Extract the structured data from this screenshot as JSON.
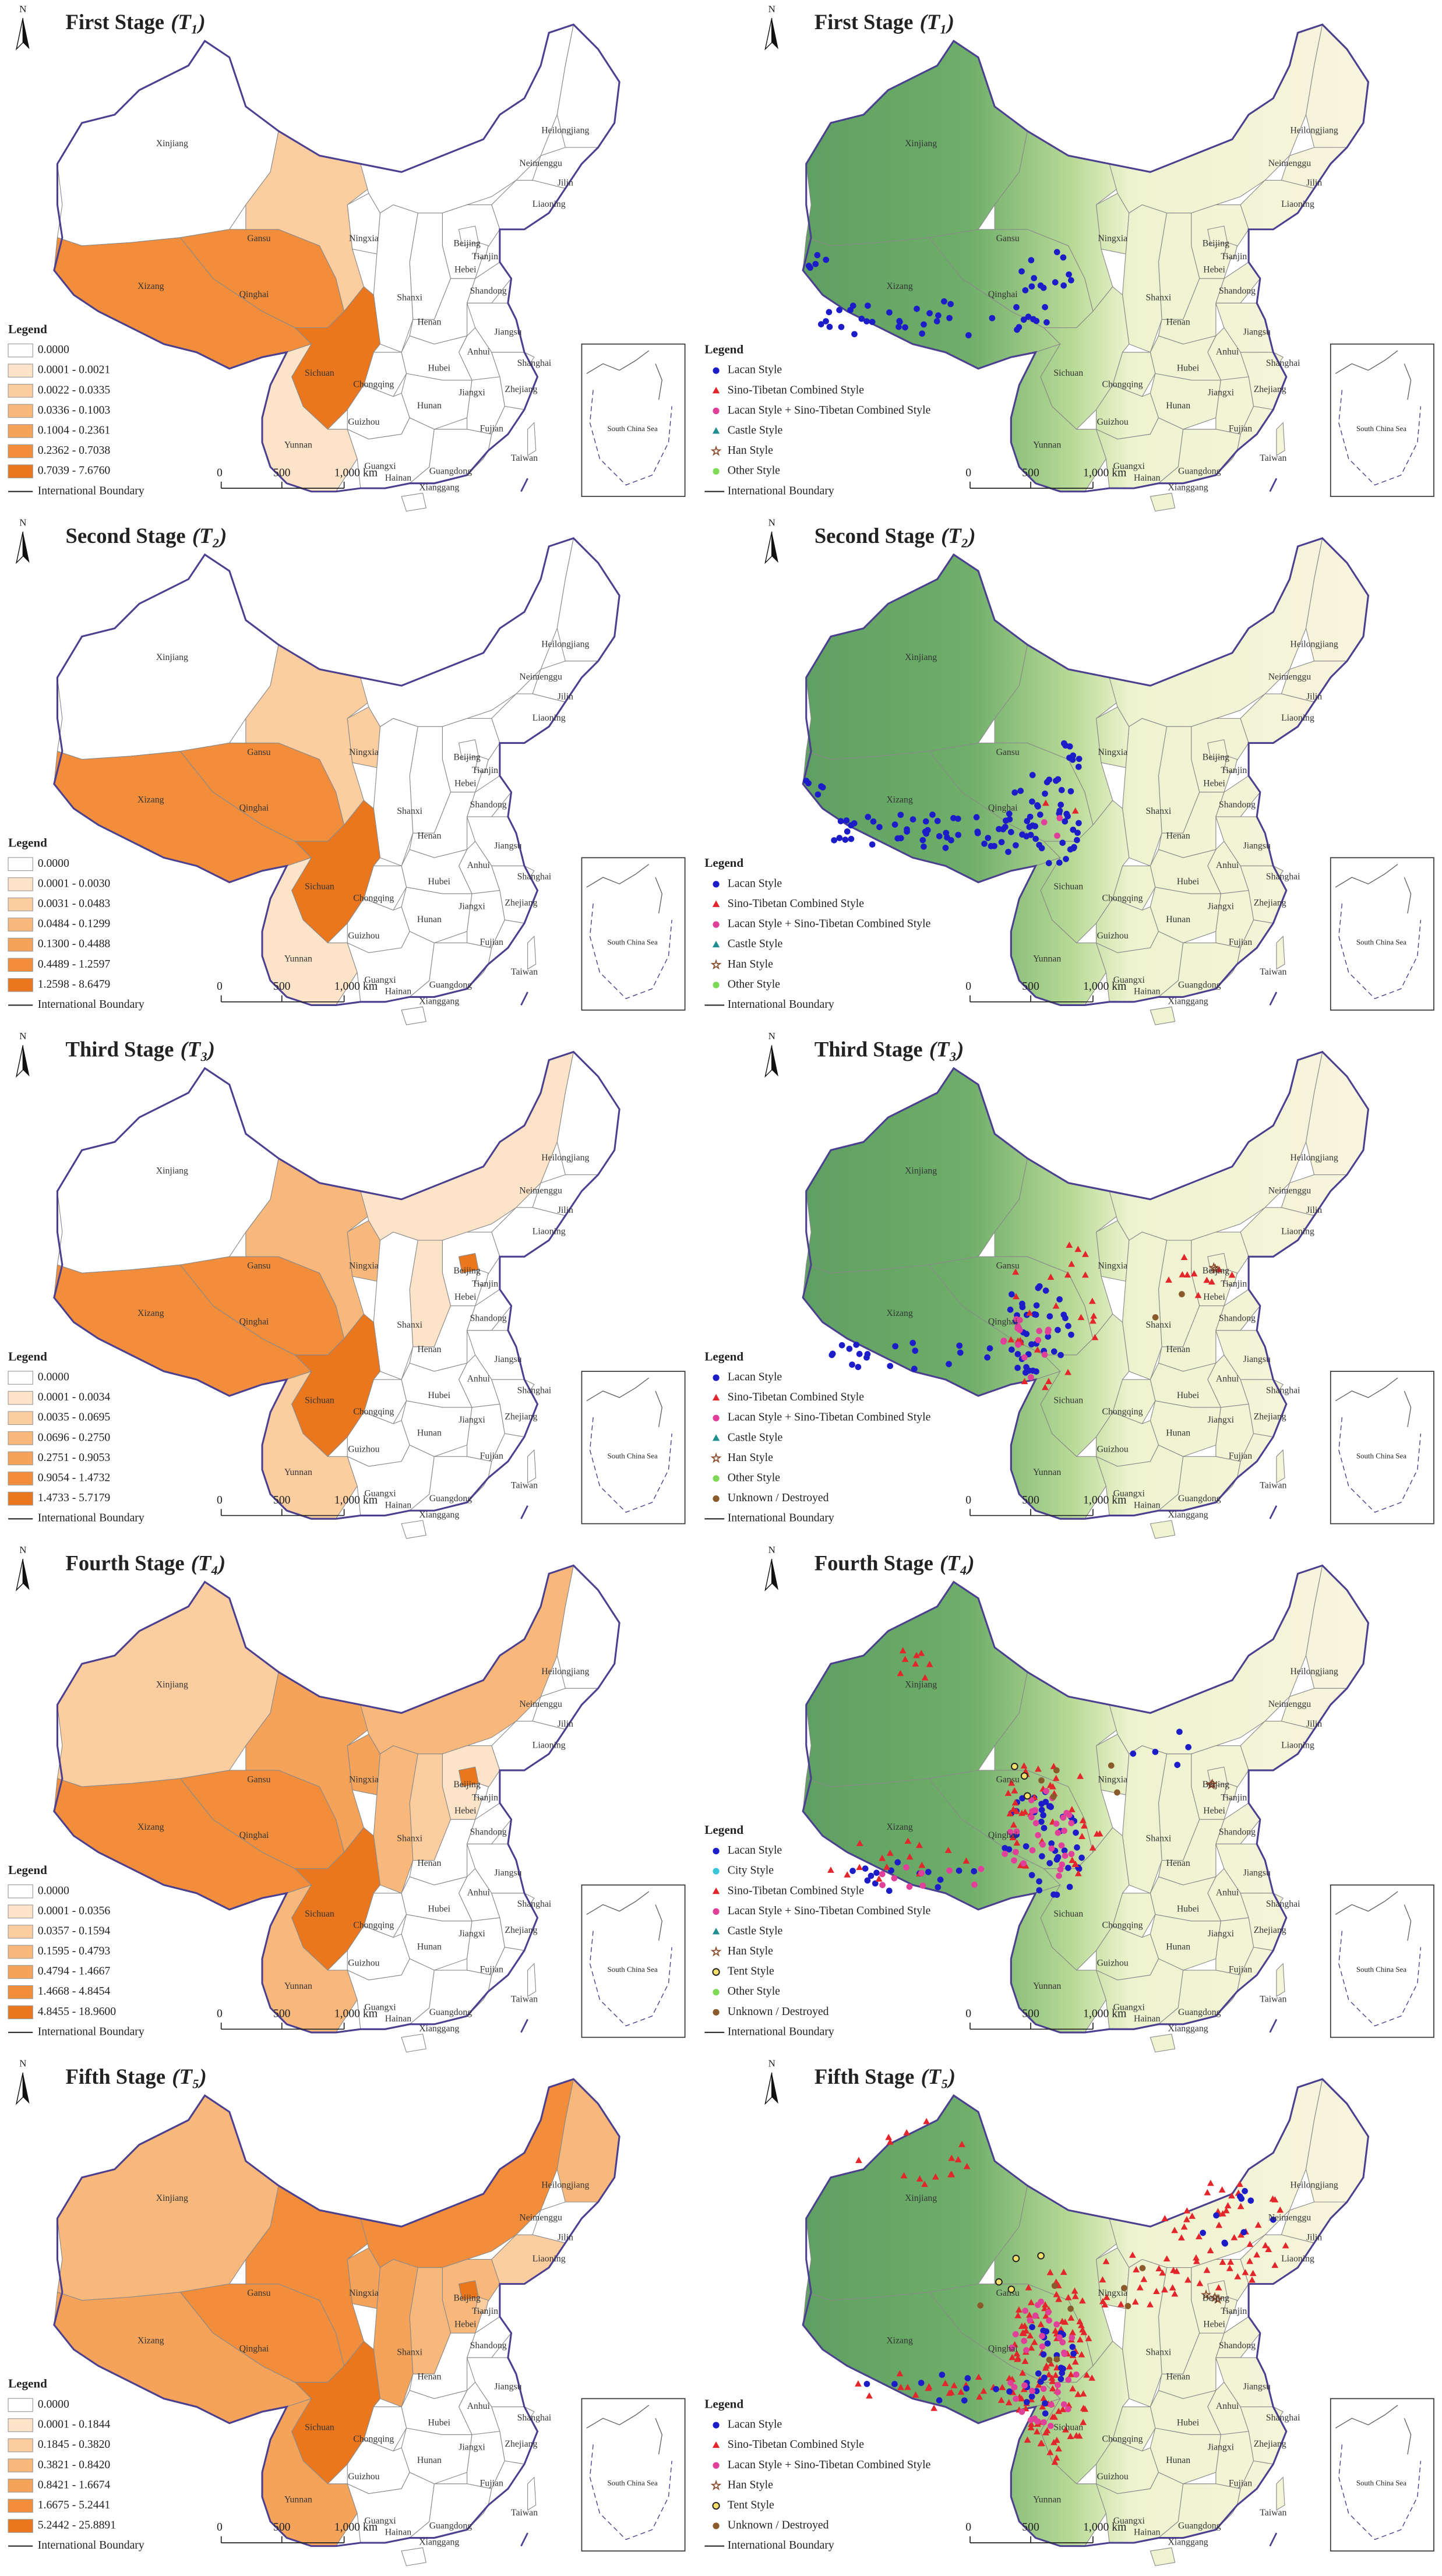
{
  "north": "N",
  "legend_title": "Legend",
  "boundary_label": "International Boundary",
  "scale_labels": [
    "0",
    "500",
    "1,000 km"
  ],
  "inset_label": "South China Sea",
  "provinces": [
    "Xinjiang",
    "Xizang",
    "Qinghai",
    "Gansu",
    "Ningxia",
    "Neimenggu",
    "Heilongjiang",
    "Jilin",
    "Liaoning",
    "Hebei",
    "Beijing",
    "Tianjin",
    "Shanxi",
    null,
    "Shandong",
    "Henan",
    "Jiangsu",
    "Anhui",
    "Shanghai",
    "Zhejiang",
    "Hubei",
    "Chongqing",
    "Sichuan",
    "Hunan",
    "Jiangxi",
    "Fujian",
    "Guizhou",
    "Yunnan",
    "Guangxi",
    "Guangdong",
    "Hainan",
    "Taiwan",
    "Xianggang"
  ],
  "class_colors": [
    "#ffffff",
    "#fde3c8",
    "#fccd9f",
    "#f9b87b",
    "#f5a25a",
    "#f18d3b",
    "#ea761d"
  ],
  "stages": [
    {
      "title": "First Stage",
      "symbol": "(T₁)",
      "classes": [
        "0.0000",
        "0.0001 - 0.0021",
        "0.0022 - 0.0335",
        "0.0336 - 0.1003",
        "0.1004 - 0.2361",
        "0.2362 - 0.7038",
        "0.7039 - 7.6760"
      ],
      "region_classes": [
        0,
        5,
        5,
        2,
        0,
        0,
        0,
        0,
        0,
        0,
        0,
        0,
        0,
        0,
        0,
        0,
        0,
        0,
        0,
        0,
        0,
        0,
        6,
        0,
        0,
        0,
        0,
        1,
        0,
        0,
        0,
        0,
        0
      ],
      "site_legend": [
        {
          "label": "Lacan Style",
          "marker": "circle",
          "color": "#1c1cc8"
        },
        {
          "label": "Sino-Tibetan Combined Style",
          "marker": "triangle",
          "color": "#e3262b"
        },
        {
          "label": "Lacan Style + Sino-Tibetan Combined Style",
          "marker": "circle",
          "color": "#e0409a"
        },
        {
          "label": "Castle Style",
          "marker": "triangle",
          "color": "#1f8f8f"
        },
        {
          "label": "Han Style",
          "marker": "star",
          "color": "#8b4a2b"
        },
        {
          "label": "Other Style",
          "marker": "circle",
          "color": "#7ed957"
        }
      ]
    },
    {
      "title": "Second Stage",
      "symbol": "(T₂)",
      "classes": [
        "0.0000",
        "0.0001 - 0.0030",
        "0.0031 - 0.0483",
        "0.0484 - 0.1299",
        "0.1300 - 0.4488",
        "0.4489 - 1.2597",
        "1.2598 - 8.6479"
      ],
      "region_classes": [
        0,
        5,
        5,
        2,
        2,
        0,
        0,
        0,
        0,
        0,
        0,
        0,
        0,
        0,
        0,
        0,
        0,
        0,
        0,
        0,
        0,
        0,
        6,
        0,
        0,
        0,
        0,
        1,
        0,
        0,
        0,
        0,
        0
      ],
      "site_legend": [
        {
          "label": "Lacan Style",
          "marker": "circle",
          "color": "#1c1cc8"
        },
        {
          "label": "Sino-Tibetan Combined Style",
          "marker": "triangle",
          "color": "#e3262b"
        },
        {
          "label": "Lacan Style + Sino-Tibetan Combined Style",
          "marker": "circle",
          "color": "#e0409a"
        },
        {
          "label": "Castle Style",
          "marker": "triangle",
          "color": "#1f8f8f"
        },
        {
          "label": "Han Style",
          "marker": "star",
          "color": "#8b4a2b"
        },
        {
          "label": "Other Style",
          "marker": "circle",
          "color": "#7ed957"
        }
      ]
    },
    {
      "title": "Third Stage",
      "symbol": "(T₃)",
      "classes": [
        "0.0000",
        "0.0001 - 0.0034",
        "0.0035 - 0.0695",
        "0.0696 - 0.2750",
        "0.2751 - 0.9053",
        "0.9054 - 1.4732",
        "1.4733 - 5.7179"
      ],
      "region_classes": [
        0,
        5,
        5,
        3,
        3,
        1,
        0,
        0,
        0,
        0,
        6,
        0,
        1,
        0,
        0,
        0,
        0,
        0,
        0,
        0,
        0,
        0,
        6,
        0,
        0,
        0,
        0,
        2,
        0,
        0,
        0,
        0,
        0
      ],
      "site_legend": [
        {
          "label": "Lacan Style",
          "marker": "circle",
          "color": "#1c1cc8"
        },
        {
          "label": "Sino-Tibetan Combined Style",
          "marker": "triangle",
          "color": "#e3262b"
        },
        {
          "label": "Lacan Style + Sino-Tibetan Combined Style",
          "marker": "circle",
          "color": "#e0409a"
        },
        {
          "label": "Castle Style",
          "marker": "triangle",
          "color": "#1f8f8f"
        },
        {
          "label": "Han Style",
          "marker": "star",
          "color": "#8b4a2b"
        },
        {
          "label": "Other Style",
          "marker": "circle",
          "color": "#7ed957"
        },
        {
          "label": "Unknown / Destroyed",
          "marker": "circle",
          "color": "#8b5a2b"
        }
      ]
    },
    {
      "title": "Fourth Stage",
      "symbol": "(T₄)",
      "classes": [
        "0.0000",
        "0.0001 - 0.0356",
        "0.0357 - 0.1594",
        "0.1595 - 0.4793",
        "0.4794 - 1.4667",
        "1.4668 - 4.8454",
        "4.8455 - 18.9600"
      ],
      "region_classes": [
        2,
        5,
        5,
        4,
        4,
        3,
        0,
        0,
        0,
        1,
        6,
        0,
        2,
        3,
        0,
        0,
        0,
        0,
        0,
        0,
        0,
        0,
        6,
        0,
        0,
        0,
        0,
        3,
        0,
        0,
        0,
        0,
        0
      ],
      "site_legend": [
        {
          "label": "Lacan Style",
          "marker": "circle",
          "color": "#1c1cc8"
        },
        {
          "label": "City Style",
          "marker": "circle",
          "color": "#39c6d6"
        },
        {
          "label": "Sino-Tibetan Combined Style",
          "marker": "triangle",
          "color": "#e3262b"
        },
        {
          "label": "Lacan Style + Sino-Tibetan Combined Style",
          "marker": "circle",
          "color": "#e0409a"
        },
        {
          "label": "Castle Style",
          "marker": "triangle",
          "color": "#1f8f8f"
        },
        {
          "label": "Han Style",
          "marker": "star",
          "color": "#8b4a2b"
        },
        {
          "label": "Tent Style",
          "marker": "ring",
          "color": "#222222"
        },
        {
          "label": "Other Style",
          "marker": "circle",
          "color": "#7ed957"
        },
        {
          "label": "Unknown / Destroyed",
          "marker": "circle",
          "color": "#8b5a2b"
        }
      ]
    },
    {
      "title": "Fifth Stage",
      "symbol": "(T₅)",
      "classes": [
        "0.0000",
        "0.0001 - 0.1844",
        "0.1845 - 0.3820",
        "0.3821 - 0.8420",
        "0.8421 - 1.6674",
        "1.6675 - 5.2441",
        "5.2442 - 25.8891"
      ],
      "region_classes": [
        3,
        4,
        5,
        5,
        4,
        5,
        3,
        0,
        2,
        3,
        6,
        2,
        3,
        4,
        0,
        0,
        0,
        0,
        0,
        0,
        0,
        0,
        6,
        0,
        0,
        0,
        0,
        4,
        0,
        0,
        0,
        0,
        0
      ],
      "site_legend": [
        {
          "label": "Lacan Style",
          "marker": "circle",
          "color": "#1c1cc8"
        },
        {
          "label": "Sino-Tibetan Combined Style",
          "marker": "triangle",
          "color": "#e3262b"
        },
        {
          "label": "Lacan Style + Sino-Tibetan Combined Style",
          "marker": "circle",
          "color": "#e0409a"
        },
        {
          "label": "Han Style",
          "marker": "star",
          "color": "#8b4a2b"
        },
        {
          "label": "Tent Style",
          "marker": "ring",
          "color": "#222222"
        },
        {
          "label": "Unknown / Destroyed",
          "marker": "circle",
          "color": "#8b5a2b"
        }
      ]
    }
  ]
}
